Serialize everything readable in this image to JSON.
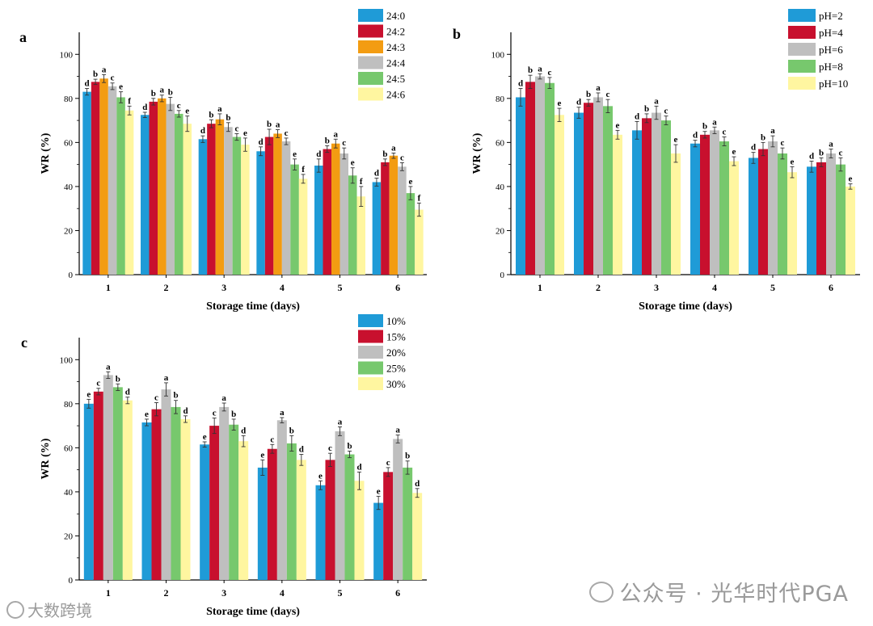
{
  "watermark": {
    "right": "公众号 · 光华时代PGA",
    "left": "大数跨境"
  },
  "chart_data": [
    {
      "type": "bar",
      "panel_label": "a",
      "xlabel": "Storage time (days)",
      "ylabel": "WR (%)",
      "ylim": [
        0,
        110
      ],
      "yticks": [
        0,
        20,
        40,
        60,
        80,
        100
      ],
      "categories": [
        "1",
        "2",
        "3",
        "4",
        "5",
        "6"
      ],
      "legend_position": "top-right",
      "series": [
        {
          "name": "24:0",
          "color": "#1f9bd7",
          "values": [
            83,
            72.5,
            61.5,
            56,
            49.5,
            42
          ],
          "errors": [
            1.5,
            1.2,
            1.5,
            2,
            3,
            1.8
          ],
          "letters": [
            "d",
            "d",
            "d",
            "d",
            "d",
            "d"
          ]
        },
        {
          "name": "24:2",
          "color": "#c8102e",
          "values": [
            87.5,
            78.5,
            68.5,
            62.5,
            57,
            51
          ],
          "errors": [
            1.2,
            1.5,
            1.8,
            3.5,
            1.5,
            1.5
          ],
          "letters": [
            "b",
            "b",
            "b",
            "b",
            "b",
            "b"
          ]
        },
        {
          "name": "24:3",
          "color": "#f39c12",
          "values": [
            89,
            80,
            70.5,
            64,
            59.5,
            54
          ],
          "errors": [
            1.8,
            1.5,
            2.5,
            1.8,
            2,
            1.2
          ],
          "letters": [
            "a",
            "a",
            "a",
            "a",
            "a",
            "a"
          ]
        },
        {
          "name": "24:4",
          "color": "#bfbfbf",
          "values": [
            85.5,
            77.5,
            67,
            60.5,
            55,
            49
          ],
          "errors": [
            1.5,
            3,
            2,
            1.5,
            2.5,
            1.8
          ],
          "letters": [
            "c",
            "b",
            "b",
            "c",
            "c",
            "c"
          ]
        },
        {
          "name": "24:5",
          "color": "#77c86d",
          "values": [
            80.5,
            73,
            62.5,
            50,
            45,
            37
          ],
          "errors": [
            2.5,
            1.5,
            1.5,
            2.5,
            3.5,
            3
          ],
          "letters": [
            "e",
            "c",
            "c",
            "e",
            "e",
            "e"
          ]
        },
        {
          "name": "24:6",
          "color": "#fff6a0",
          "values": [
            74.5,
            68.5,
            59,
            43.5,
            35.5,
            29.5
          ],
          "errors": [
            2,
            3.5,
            3,
            2,
            4.5,
            3
          ],
          "letters": [
            "f",
            "e",
            "e",
            "f",
            "f",
            "f"
          ]
        }
      ]
    },
    {
      "type": "bar",
      "panel_label": "b",
      "xlabel": "Storage time (days)",
      "ylabel": "WR (%)",
      "ylim": [
        0,
        110
      ],
      "yticks": [
        0,
        20,
        40,
        60,
        80,
        100
      ],
      "categories": [
        "1",
        "2",
        "3",
        "4",
        "5",
        "6"
      ],
      "legend_position": "top-right",
      "series": [
        {
          "name": "pH=2",
          "color": "#1f9bd7",
          "values": [
            80.5,
            73.5,
            65.5,
            59.5,
            53,
            49
          ],
          "errors": [
            4,
            2.5,
            4,
            1.5,
            2.5,
            2.5
          ],
          "letters": [
            "d",
            "d",
            "d",
            "d",
            "d",
            "d"
          ]
        },
        {
          "name": "pH=4",
          "color": "#c8102e",
          "values": [
            87.5,
            78,
            71,
            63.5,
            57,
            51
          ],
          "errors": [
            3,
            1.5,
            2,
            1.5,
            3,
            2
          ],
          "letters": [
            "b",
            "b",
            "b",
            "b",
            "b",
            "b"
          ]
        },
        {
          "name": "pH=6",
          "color": "#bfbfbf",
          "values": [
            90,
            80.5,
            73.5,
            65.5,
            60.5,
            55
          ],
          "errors": [
            1.2,
            2,
            3,
            1.5,
            2.5,
            2
          ],
          "letters": [
            "a",
            "a",
            "a",
            "a",
            "a",
            "a"
          ]
        },
        {
          "name": "pH=8",
          "color": "#77c86d",
          "values": [
            87,
            76.5,
            70,
            60.5,
            55,
            50
          ],
          "errors": [
            2.5,
            3,
            2,
            2,
            2.5,
            3
          ],
          "letters": [
            "c",
            "c",
            "c",
            "c",
            "c",
            "c"
          ]
        },
        {
          "name": "pH=10",
          "color": "#fff6a0",
          "values": [
            72.5,
            63.5,
            55,
            51.5,
            46.5,
            40
          ],
          "errors": [
            3,
            2,
            4,
            2,
            2.5,
            1.2
          ],
          "letters": [
            "e",
            "e",
            "e",
            "e",
            "e",
            "e"
          ]
        }
      ]
    },
    {
      "type": "bar",
      "panel_label": "c",
      "xlabel": "Storage time (days)",
      "ylabel": "WR (%)",
      "ylim": [
        0,
        110
      ],
      "yticks": [
        0,
        20,
        40,
        60,
        80,
        100
      ],
      "categories": [
        "1",
        "2",
        "3",
        "4",
        "5",
        "6"
      ],
      "legend_position": "top-right",
      "series": [
        {
          "name": "10%",
          "color": "#1f9bd7",
          "values": [
            80,
            71.5,
            61.5,
            51,
            43,
            35
          ],
          "errors": [
            2,
            1.5,
            1.2,
            3.5,
            2,
            3
          ],
          "letters": [
            "e",
            "e",
            "e",
            "e",
            "e",
            "e"
          ]
        },
        {
          "name": "15%",
          "color": "#c8102e",
          "values": [
            85.5,
            77.5,
            70,
            59.5,
            54.5,
            49
          ],
          "errors": [
            1.5,
            3,
            3.5,
            2,
            3,
            2
          ],
          "letters": [
            "c",
            "c",
            "c",
            "c",
            "c",
            "c"
          ]
        },
        {
          "name": "20%",
          "color": "#bfbfbf",
          "values": [
            93,
            86.5,
            78.5,
            72.5,
            67.5,
            64
          ],
          "errors": [
            1.5,
            3,
            1.8,
            1.2,
            2,
            1.8
          ],
          "letters": [
            "a",
            "a",
            "a",
            "a",
            "a",
            "a"
          ]
        },
        {
          "name": "25%",
          "color": "#77c86d",
          "values": [
            87.5,
            78.5,
            70.5,
            62,
            57,
            51
          ],
          "errors": [
            1.5,
            3,
            2.5,
            3.5,
            1.5,
            3
          ],
          "letters": [
            "b",
            "b",
            "b",
            "b",
            "b",
            "b"
          ]
        },
        {
          "name": "30%",
          "color": "#fff6a0",
          "values": [
            81.5,
            73,
            63,
            54.5,
            45,
            39.5
          ],
          "errors": [
            1.5,
            1.5,
            2.5,
            2.5,
            4,
            2
          ],
          "letters": [
            "d",
            "d",
            "d",
            "d",
            "d",
            "d"
          ]
        }
      ]
    }
  ]
}
